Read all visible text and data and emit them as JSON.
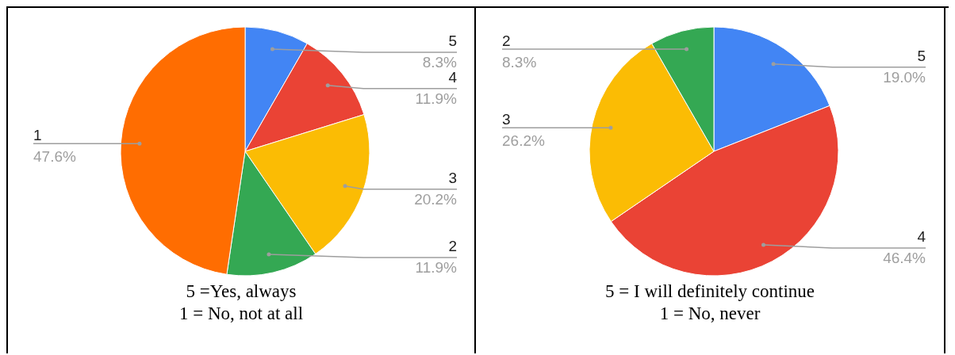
{
  "chart_data": [
    {
      "type": "pie",
      "categories": [
        "5",
        "4",
        "3",
        "2",
        "1"
      ],
      "values": [
        8.3,
        11.9,
        20.2,
        11.9,
        47.6
      ],
      "value_labels": [
        "8.3%",
        "11.9%",
        "20.2%",
        "11.9%",
        "47.6%"
      ],
      "colors": [
        "#4285f4",
        "#ea4335",
        "#fbbc04",
        "#34a853",
        "#ff6d01"
      ],
      "annotations": [
        "5 =Yes, always",
        "1 = No, not at all"
      ]
    },
    {
      "type": "pie",
      "categories": [
        "5",
        "4",
        "3",
        "2"
      ],
      "values": [
        19.0,
        46.4,
        26.2,
        8.3
      ],
      "value_labels": [
        "19.0%",
        "46.4%",
        "26.2%",
        "8.3%"
      ],
      "colors": [
        "#4285f4",
        "#ea4335",
        "#fbbc04",
        "#34a853"
      ],
      "annotations": [
        "5 = I will definitely continue",
        "1 = No, never"
      ]
    }
  ]
}
